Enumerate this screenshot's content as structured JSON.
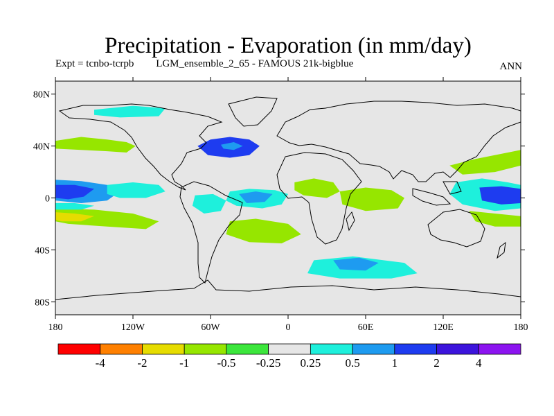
{
  "header": {
    "title": "Precipitation - Evaporation (in mm/day)",
    "experiment": "Expt = tcnbo-tcrpb",
    "dataset": "LGM_ensemble_2_65 - FAMOUS 21k-bigblue",
    "period": "ANN"
  },
  "map": {
    "lon_range": [
      -180,
      180
    ],
    "lat_range": [
      -90,
      90
    ],
    "background": "#e6e6e6",
    "y_ticks": [
      {
        "lat": 80,
        "label": "80N"
      },
      {
        "lat": 40,
        "label": "40N"
      },
      {
        "lat": 0,
        "label": "0"
      },
      {
        "lat": -40,
        "label": "40S"
      },
      {
        "lat": -80,
        "label": "80S"
      }
    ],
    "x_ticks": [
      {
        "lon": -180,
        "label": "180"
      },
      {
        "lon": -120,
        "label": "120W"
      },
      {
        "lon": -60,
        "label": "60W"
      },
      {
        "lon": 0,
        "label": "0"
      },
      {
        "lon": 60,
        "label": "60E"
      },
      {
        "lon": 120,
        "label": "120E"
      },
      {
        "lon": 180,
        "label": "180"
      }
    ]
  },
  "colorbar": {
    "colors": [
      "#ff0000",
      "#ff8000",
      "#e6dc00",
      "#96e600",
      "#3ce63c",
      "#e6e6e6",
      "#1ef0dc",
      "#1e9bf0",
      "#1e3cf0",
      "#3c14dc",
      "#8c14f0"
    ],
    "labels": [
      "-4",
      "-2",
      "-1",
      "-0.5",
      "-0.25",
      "0.25",
      "0.5",
      "1",
      "2",
      "4"
    ]
  },
  "chart_data": {
    "type": "heatmap",
    "title": "Precipitation - Evaporation (in mm/day)",
    "units": "mm/day",
    "levels": [
      -4,
      -2,
      -1,
      -0.5,
      -0.25,
      0.25,
      0.5,
      1,
      2,
      4
    ],
    "regions": [
      {
        "name": "north-atlantic-subtropical-positive",
        "lon": -45,
        "lat": 38,
        "class": "blue",
        "outline": [
          [
            -70,
            40
          ],
          [
            -60,
            45
          ],
          [
            -45,
            47
          ],
          [
            -30,
            45
          ],
          [
            -22,
            40
          ],
          [
            -30,
            33
          ],
          [
            -45,
            31
          ],
          [
            -62,
            33
          ]
        ]
      },
      {
        "name": "north-atlantic-core",
        "lon": -45,
        "lat": 40,
        "class": "mid",
        "outline": [
          [
            -52,
            41
          ],
          [
            -42,
            43
          ],
          [
            -35,
            40
          ],
          [
            -42,
            37
          ],
          [
            -50,
            38
          ]
        ]
      },
      {
        "name": "north-pacific-band",
        "lon": -145,
        "lat": 40,
        "class": "green",
        "outline": [
          [
            -180,
            44
          ],
          [
            -160,
            47
          ],
          [
            -140,
            45
          ],
          [
            -125,
            43
          ],
          [
            -118,
            40
          ],
          [
            -125,
            35
          ],
          [
            -140,
            36
          ],
          [
            -160,
            37
          ],
          [
            -180,
            38
          ]
        ]
      },
      {
        "name": "central-pacific-itcz-west",
        "lon": -160,
        "lat": 5,
        "class": "mid",
        "outline": [
          [
            -180,
            14
          ],
          [
            -160,
            13
          ],
          [
            -140,
            10
          ],
          [
            -130,
            5
          ],
          [
            -140,
            -2
          ],
          [
            -160,
            -4
          ],
          [
            -180,
            -2
          ]
        ]
      },
      {
        "name": "central-pacific-itcz-core",
        "lon": -165,
        "lat": 4,
        "class": "blue",
        "outline": [
          [
            -180,
            10
          ],
          [
            -165,
            10
          ],
          [
            -150,
            7
          ],
          [
            -158,
            1
          ],
          [
            -170,
            -1
          ],
          [
            -180,
            0
          ]
        ]
      },
      {
        "name": "east-pacific-cyan",
        "lon": -120,
        "lat": 5,
        "class": "cyan",
        "outline": [
          [
            -140,
            10
          ],
          [
            -120,
            12
          ],
          [
            -100,
            10
          ],
          [
            -95,
            5
          ],
          [
            -110,
            0
          ],
          [
            -130,
            0
          ],
          [
            -140,
            3
          ]
        ]
      },
      {
        "name": "south-pacific-dry",
        "lon": -150,
        "lat": -15,
        "class": "green",
        "outline": [
          [
            -180,
            -8
          ],
          [
            -150,
            -9
          ],
          [
            -120,
            -12
          ],
          [
            -100,
            -18
          ],
          [
            -110,
            -24
          ],
          [
            -140,
            -22
          ],
          [
            -170,
            -20
          ],
          [
            -180,
            -18
          ]
        ]
      },
      {
        "name": "south-pacific-dry-core",
        "lon": -165,
        "lat": -15,
        "class": "yellow",
        "outline": [
          [
            -180,
            -11
          ],
          [
            -165,
            -12
          ],
          [
            -150,
            -14
          ],
          [
            -160,
            -18
          ],
          [
            -175,
            -18
          ],
          [
            -180,
            -17
          ]
        ]
      },
      {
        "name": "south-pacific-cyan",
        "lon": -170,
        "lat": -5,
        "class": "cyan",
        "outline": [
          [
            -180,
            -4
          ],
          [
            -165,
            -4
          ],
          [
            -150,
            -6
          ],
          [
            -160,
            -9
          ],
          [
            -180,
            -9
          ]
        ]
      },
      {
        "name": "tropical-atlantic-cyan",
        "lon": -25,
        "lat": 0,
        "class": "cyan",
        "outline": [
          [
            -45,
            5
          ],
          [
            -30,
            7
          ],
          [
            -10,
            6
          ],
          [
            0,
            3
          ],
          [
            -5,
            -5
          ],
          [
            -20,
            -8
          ],
          [
            -40,
            -6
          ],
          [
            -48,
            -2
          ]
        ]
      },
      {
        "name": "tropical-atlantic-blue",
        "lon": -25,
        "lat": 0,
        "class": "mid",
        "outline": [
          [
            -38,
            3
          ],
          [
            -25,
            5
          ],
          [
            -12,
            3
          ],
          [
            -18,
            -3
          ],
          [
            -32,
            -4
          ]
        ]
      },
      {
        "name": "south-atlantic-green",
        "lon": -20,
        "lat": -25,
        "class": "green",
        "outline": [
          [
            -45,
            -18
          ],
          [
            -25,
            -16
          ],
          [
            0,
            -20
          ],
          [
            10,
            -28
          ],
          [
            -5,
            -35
          ],
          [
            -30,
            -34
          ],
          [
            -48,
            -28
          ]
        ]
      },
      {
        "name": "southern-ocean-cyan",
        "lon": 60,
        "lat": -55,
        "class": "cyan",
        "outline": [
          [
            20,
            -48
          ],
          [
            50,
            -45
          ],
          [
            90,
            -50
          ],
          [
            100,
            -58
          ],
          [
            80,
            -62
          ],
          [
            40,
            -62
          ],
          [
            15,
            -58
          ]
        ]
      },
      {
        "name": "southern-ocean-blue",
        "lon": 55,
        "lat": -52,
        "class": "mid",
        "outline": [
          [
            35,
            -48
          ],
          [
            55,
            -46
          ],
          [
            70,
            -50
          ],
          [
            60,
            -56
          ],
          [
            40,
            -55
          ]
        ]
      },
      {
        "name": "indian-ocean-green",
        "lon": 70,
        "lat": -5,
        "class": "green",
        "outline": [
          [
            40,
            5
          ],
          [
            60,
            8
          ],
          [
            80,
            6
          ],
          [
            90,
            0
          ],
          [
            85,
            -8
          ],
          [
            60,
            -10
          ],
          [
            42,
            -5
          ]
        ]
      },
      {
        "name": "west-pacific-warm-pool",
        "lon": 160,
        "lat": 2,
        "class": "cyan",
        "outline": [
          [
            130,
            12
          ],
          [
            150,
            15
          ],
          [
            170,
            12
          ],
          [
            180,
            10
          ],
          [
            180,
            -8
          ],
          [
            160,
            -10
          ],
          [
            135,
            -5
          ],
          [
            125,
            3
          ]
        ]
      },
      {
        "name": "west-pacific-core",
        "lon": 165,
        "lat": 2,
        "class": "blue",
        "outline": [
          [
            148,
            8
          ],
          [
            165,
            9
          ],
          [
            180,
            7
          ],
          [
            180,
            -4
          ],
          [
            165,
            -5
          ],
          [
            150,
            -2
          ]
        ]
      },
      {
        "name": "north-west-pacific-green",
        "lon": 150,
        "lat": 30,
        "class": "green",
        "outline": [
          [
            125,
            25
          ],
          [
            145,
            30
          ],
          [
            170,
            35
          ],
          [
            180,
            37
          ],
          [
            180,
            25
          ],
          [
            160,
            20
          ],
          [
            135,
            18
          ]
        ]
      },
      {
        "name": "south-west-pacific-green",
        "lon": 160,
        "lat": -15,
        "class": "green",
        "outline": [
          [
            140,
            -10
          ],
          [
            160,
            -12
          ],
          [
            180,
            -14
          ],
          [
            180,
            -22
          ],
          [
            160,
            -22
          ],
          [
            145,
            -18
          ]
        ]
      },
      {
        "name": "arctic-coast-cyan",
        "lon": -120,
        "lat": 65,
        "class": "cyan",
        "outline": [
          [
            -150,
            68
          ],
          [
            -120,
            71
          ],
          [
            -95,
            69
          ],
          [
            -100,
            63
          ],
          [
            -130,
            62
          ],
          [
            -150,
            64
          ]
        ]
      },
      {
        "name": "amazon-cyan",
        "lon": -60,
        "lat": -5,
        "class": "cyan",
        "outline": [
          [
            -72,
            2
          ],
          [
            -58,
            3
          ],
          [
            -48,
            -2
          ],
          [
            -52,
            -10
          ],
          [
            -65,
            -12
          ],
          [
            -74,
            -6
          ]
        ]
      },
      {
        "name": "africa-green",
        "lon": 20,
        "lat": 8,
        "class": "green",
        "outline": [
          [
            5,
            12
          ],
          [
            20,
            15
          ],
          [
            35,
            12
          ],
          [
            40,
            5
          ],
          [
            30,
            0
          ],
          [
            12,
            2
          ],
          [
            5,
            6
          ]
        ]
      }
    ]
  }
}
